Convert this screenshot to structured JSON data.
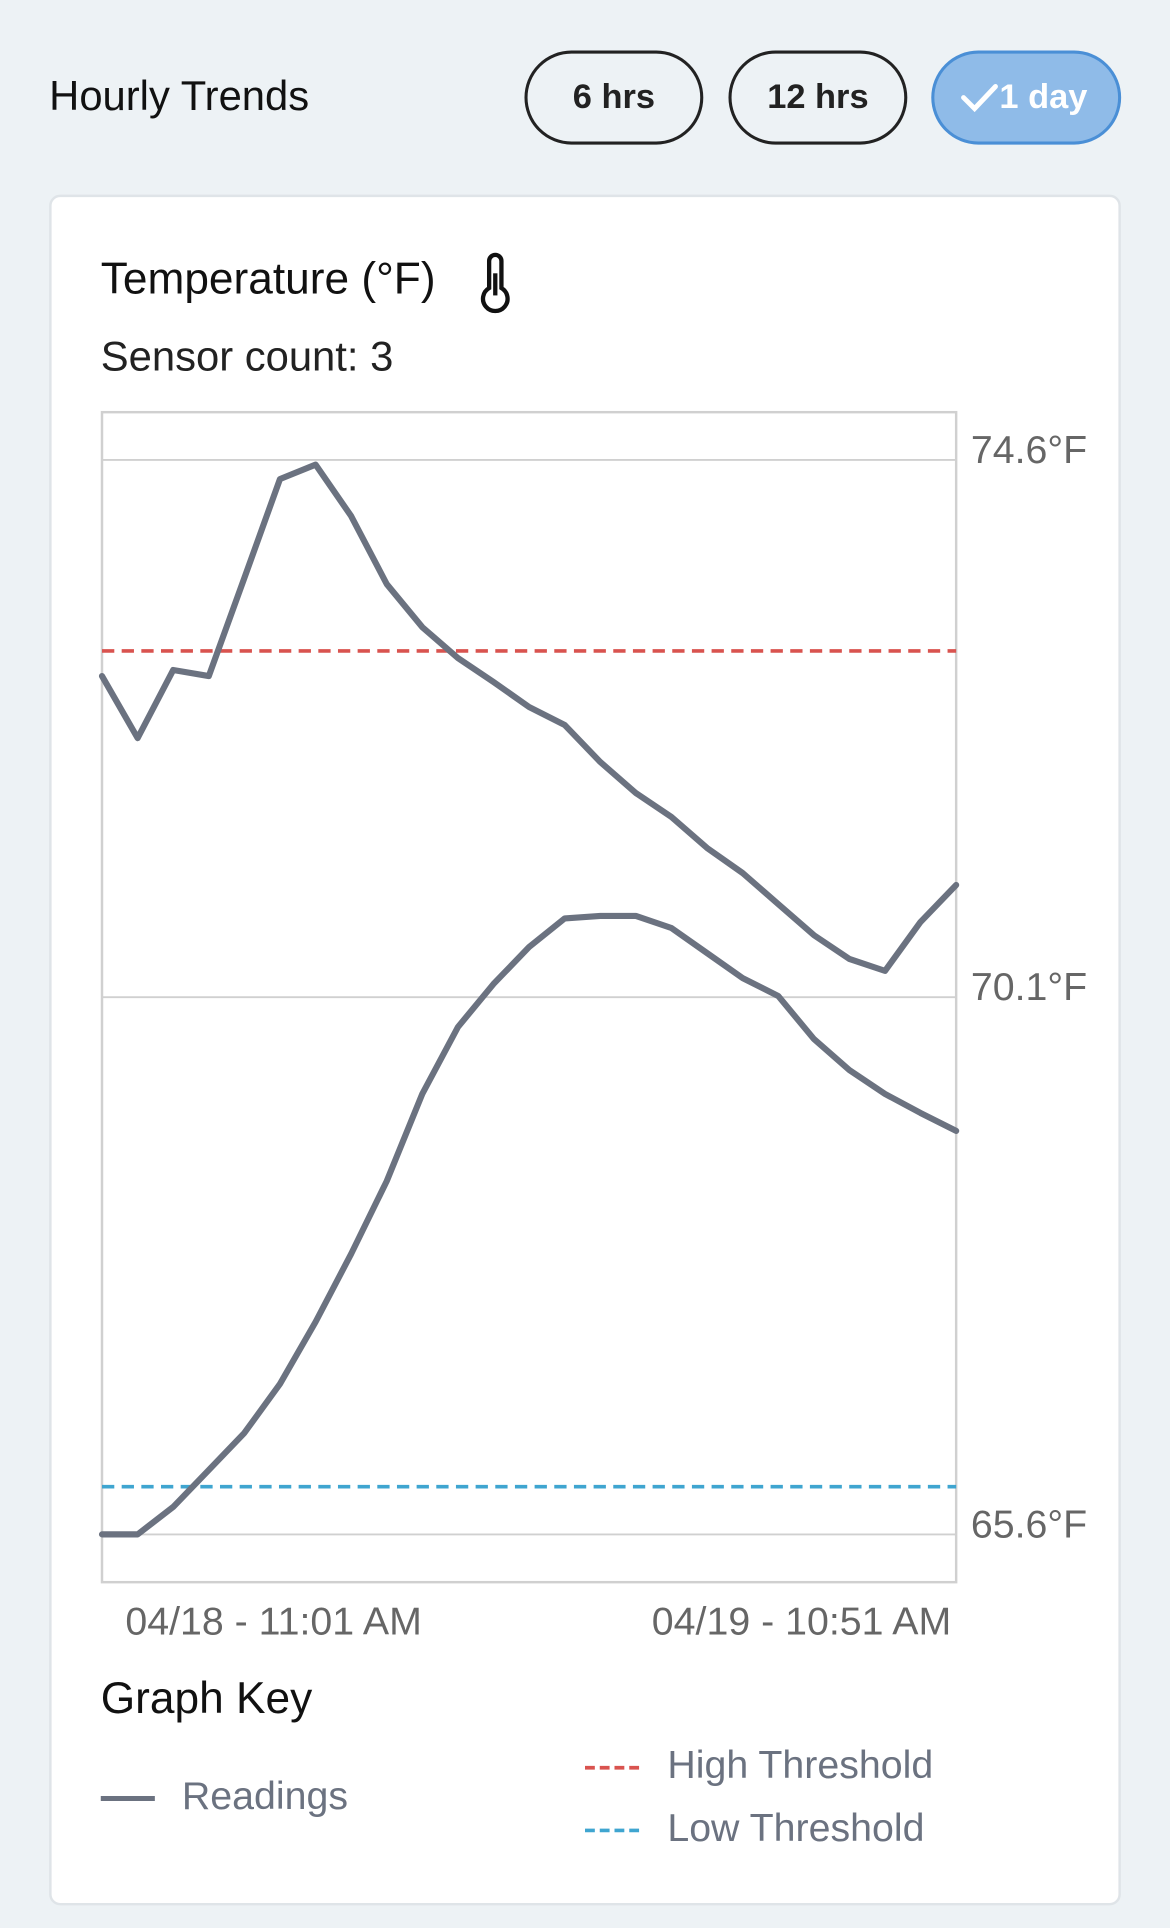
{
  "header": {
    "title": "Hourly Trends",
    "buttons": [
      "6 hrs",
      "12 hrs",
      "1 day"
    ],
    "selected": 2
  },
  "card": {
    "title": "Temperature (°F)",
    "subtitle": "Sensor count: 3",
    "key_title": "Graph Key"
  },
  "chart_data": {
    "type": "line",
    "categories": [
      "04/18 - 11:01 AM",
      null,
      null,
      null,
      null,
      null,
      null,
      null,
      null,
      null,
      null,
      null,
      null,
      null,
      null,
      null,
      null,
      null,
      null,
      null,
      null,
      null,
      null,
      null,
      "04/19 - 10:51 AM"
    ],
    "series": [
      {
        "color": "#6b7280",
        "values": [
          72.79,
          72.27,
          72.84,
          72.79,
          73.61,
          74.44,
          74.56,
          74.13,
          73.56,
          73.2,
          72.94,
          72.74,
          72.53,
          72.38,
          72.07,
          71.81,
          71.61,
          71.35,
          71.14,
          70.88,
          70.62,
          70.42,
          70.32,
          70.73,
          71.04
        ]
      },
      {
        "color": "#6b7280",
        "values": [
          65.6,
          65.6,
          65.83,
          66.14,
          66.45,
          66.86,
          67.38,
          67.95,
          68.56,
          69.29,
          69.85,
          70.21,
          70.52,
          70.76,
          70.78,
          70.78,
          70.68,
          70.47,
          70.26,
          70.11,
          69.75,
          69.49,
          69.29,
          69.13,
          68.98
        ]
      }
    ],
    "readings_label": "Readings",
    "thresholds": [
      {
        "name": "High Threshold",
        "value": 73.0,
        "color": "#d9534f"
      },
      {
        "name": "Low Threshold",
        "value": 66.0,
        "color": "#3fa5d0"
      }
    ],
    "ylim": [
      65.2,
      75.0
    ],
    "yticks": [
      {
        "value": 65.6,
        "label": "65.6°F"
      },
      {
        "value": 70.1,
        "label": "70.1°F"
      },
      {
        "value": 74.6,
        "label": "74.6°F"
      }
    ],
    "grid": true
  }
}
